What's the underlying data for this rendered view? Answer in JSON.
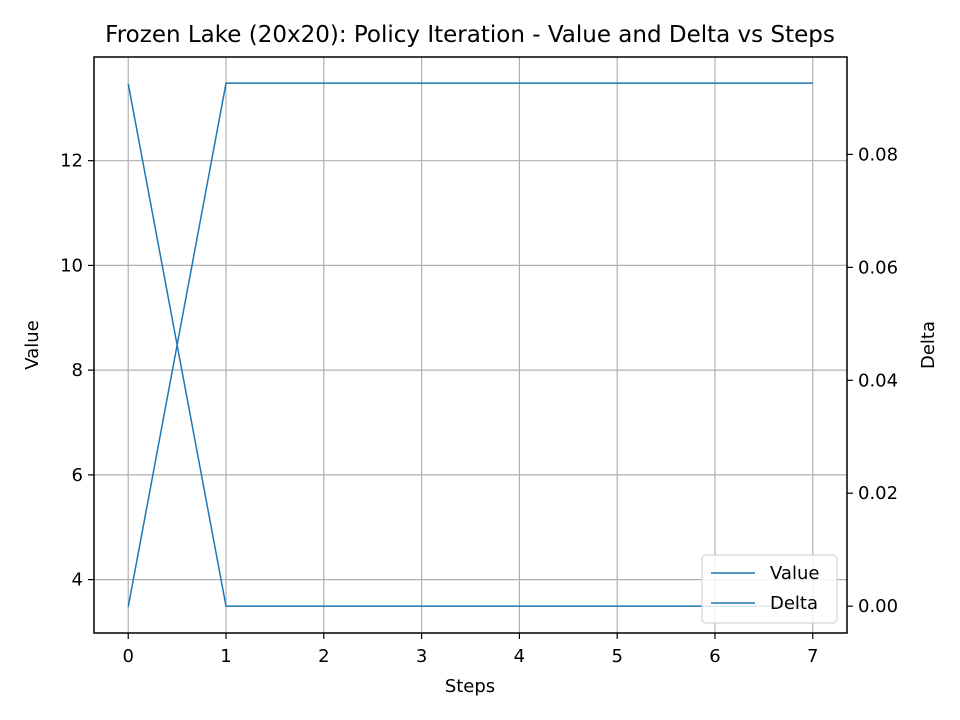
{
  "chart_data": {
    "type": "line",
    "title": "Frozen Lake (20x20): Policy Iteration - Value and Delta vs Steps",
    "xlabel": "Steps",
    "ylabel": "Value",
    "y2label": "Delta",
    "x": [
      0,
      1,
      2,
      3,
      4,
      5,
      6,
      7
    ],
    "xticks": [
      "0",
      "1",
      "2",
      "3",
      "4",
      "5",
      "6",
      "7"
    ],
    "xlim": [
      -0.35,
      7.35
    ],
    "ylim": [
      2.98,
      13.98
    ],
    "y2lim": [
      -0.00475,
      0.09725
    ],
    "yticks": [
      "4",
      "6",
      "8",
      "10",
      "12"
    ],
    "y2ticks": [
      "0.00",
      "0.02",
      "0.04",
      "0.06",
      "0.08"
    ],
    "grid": true,
    "legend_position": "lower-right",
    "series": [
      {
        "name": "Value",
        "axis": "left",
        "color": "#1f77b4",
        "values": [
          3.48,
          13.48,
          13.48,
          13.48,
          13.48,
          13.48,
          13.48,
          13.48
        ]
      },
      {
        "name": "Delta",
        "axis": "right",
        "color": "#1f77b4",
        "values": [
          0.0925,
          0.0,
          0.0,
          0.0,
          0.0,
          0.0,
          0.0,
          0.0
        ]
      }
    ]
  }
}
